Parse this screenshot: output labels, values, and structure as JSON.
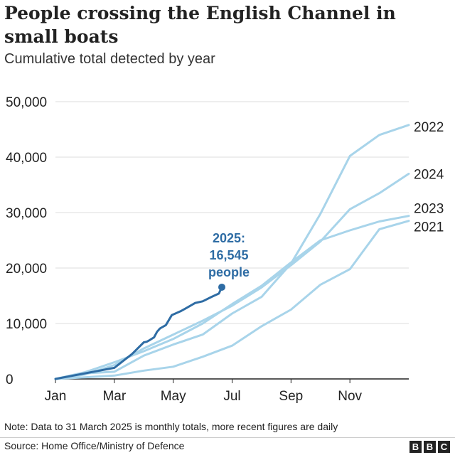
{
  "chart_data": {
    "type": "line",
    "title": "People crossing the English Channel in small boats",
    "subtitle": "Cumulative total detected by year",
    "xlabel": "",
    "ylabel": "",
    "x_unit": "months since 1 January",
    "xlim": [
      0,
      12
    ],
    "ylim": [
      0,
      50000
    ],
    "y_ticks": [
      {
        "value": 0,
        "label": "0"
      },
      {
        "value": 10000,
        "label": "10,000"
      },
      {
        "value": 20000,
        "label": "20,000"
      },
      {
        "value": 30000,
        "label": "30,000"
      },
      {
        "value": 40000,
        "label": "40,000"
      },
      {
        "value": 50000,
        "label": "50,000"
      }
    ],
    "x_ticks": [
      {
        "value": 0,
        "label": "Jan"
      },
      {
        "value": 2,
        "label": "Mar"
      },
      {
        "value": 4,
        "label": "May"
      },
      {
        "value": 6,
        "label": "Jul"
      },
      {
        "value": 8,
        "label": "Sep"
      },
      {
        "value": 10,
        "label": "Nov"
      }
    ],
    "grid": "horizontal",
    "series": [
      {
        "name": "2021",
        "label": "2021",
        "color": "#a8d4ea",
        "x": [
          0,
          1,
          2,
          3,
          4,
          5,
          6,
          7,
          8,
          9,
          10,
          11,
          12
        ],
        "y": [
          0,
          300,
          600,
          1500,
          2200,
          4000,
          6000,
          9500,
          12500,
          17000,
          19800,
          27000,
          28500
        ]
      },
      {
        "name": "2022",
        "label": "2022",
        "color": "#a8d4ea",
        "x": [
          0,
          1,
          2,
          3,
          4,
          5,
          6,
          7,
          8,
          9,
          10,
          11,
          12
        ],
        "y": [
          0,
          1000,
          1300,
          4200,
          6200,
          8000,
          11800,
          14800,
          20800,
          29800,
          40200,
          44000,
          45800
        ]
      },
      {
        "name": "2023",
        "label": "2023",
        "color": "#a8d4ea",
        "x": [
          0,
          1,
          2,
          3,
          4,
          5,
          6,
          7,
          8,
          9,
          10,
          11,
          12
        ],
        "y": [
          0,
          1200,
          3000,
          5000,
          7200,
          10000,
          13500,
          16800,
          21000,
          25000,
          26800,
          28400,
          29400
        ]
      },
      {
        "name": "2024",
        "label": "2024",
        "color": "#a8d4ea",
        "x": [
          0,
          1,
          2,
          3,
          4,
          5,
          6,
          7,
          8,
          9,
          10,
          11,
          12
        ],
        "y": [
          0,
          800,
          2500,
          5500,
          8000,
          10500,
          13200,
          16500,
          20500,
          24800,
          30600,
          33500,
          37000
        ]
      },
      {
        "name": "2025",
        "color": "#2e6ca4",
        "step": true,
        "x": [
          0,
          1,
          2,
          2.6,
          3.0,
          3.1,
          3.2,
          3.35,
          3.45,
          3.55,
          3.75,
          3.95,
          4.25,
          4.45,
          4.75,
          5.0,
          5.3,
          5.55,
          5.65
        ],
        "y": [
          0,
          1000,
          2000,
          4500,
          6600,
          6700,
          7000,
          7500,
          8500,
          9100,
          9700,
          11500,
          12200,
          12800,
          13700,
          14000,
          14800,
          15400,
          16545
        ]
      }
    ],
    "annotations": [
      {
        "series": "2025",
        "x": 5.65,
        "y": 16545,
        "lines": [
          "2025:",
          "16,545",
          "people"
        ],
        "color": "#2e6ca4"
      }
    ]
  },
  "footer": {
    "note": "Note: Data to 31 March 2025 is monthly totals, more recent figures are daily",
    "source": "Source: Home Office/Ministry of Defence",
    "logo": [
      "B",
      "B",
      "C"
    ]
  }
}
